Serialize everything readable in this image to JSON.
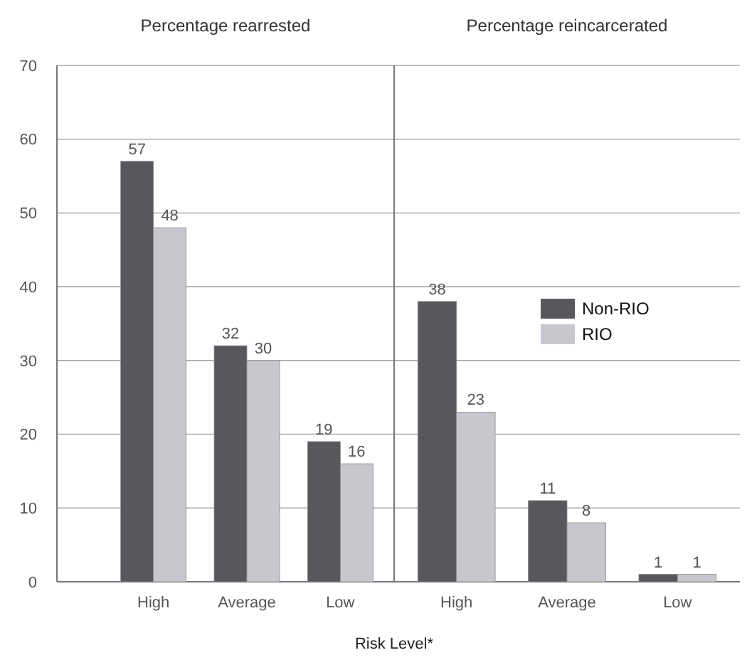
{
  "chart_data": [
    {
      "type": "bar",
      "title": "Percentage rearrested",
      "xlabel": "Risk Level*",
      "categories": [
        "High",
        "Average",
        "Low"
      ],
      "series": [
        {
          "color": "#58585c",
          "values": [
            57,
            32,
            19
          ]
        },
        {
          "color": "#c9c7cd",
          "values": [
            48,
            30,
            16
          ]
        }
      ],
      "ylim": [
        0,
        70
      ],
      "yticks": [
        0,
        10,
        20,
        30,
        40,
        50,
        60,
        70
      ],
      "grid": "y",
      "data_labels": true
    },
    {
      "type": "bar",
      "title": "Percentage reincarcerated",
      "categories": [
        "High",
        "Average",
        "Low"
      ],
      "series": [
        {
          "name": "Non-RIO",
          "color": "#58585c",
          "values": [
            38,
            11,
            1
          ]
        },
        {
          "name": "RIO",
          "color": "#c9c7cd",
          "values": [
            23,
            8,
            1
          ]
        }
      ],
      "ylim": [
        0,
        70
      ],
      "yticks": [
        0,
        10,
        20,
        30,
        40,
        50,
        60,
        70
      ],
      "grid": "y",
      "data_labels": true,
      "legend": "right",
      "tick_labels": "x"
    }
  ]
}
